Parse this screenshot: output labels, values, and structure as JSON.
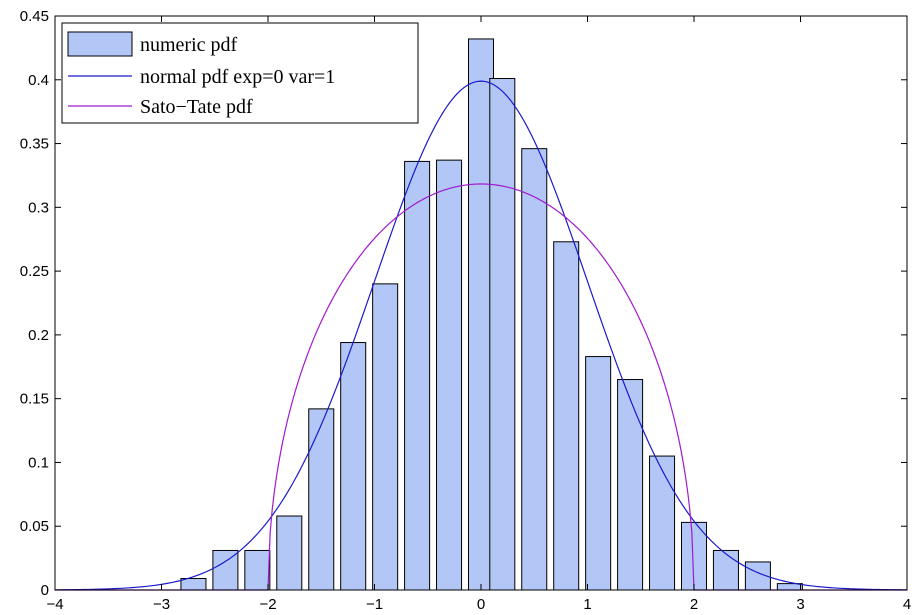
{
  "chart_data": {
    "type": "bar",
    "title": "",
    "xlabel": "",
    "ylabel": "",
    "xlim": [
      -4,
      4
    ],
    "ylim": [
      0,
      0.45
    ],
    "grid": false,
    "legend_position": "top-left",
    "x_ticks": [
      -4,
      -3,
      -2,
      -1,
      0,
      1,
      2,
      3,
      4
    ],
    "x_tick_labels": [
      "−4",
      "−3",
      "−2",
      "−1",
      "0",
      "1",
      "2",
      "3",
      "4"
    ],
    "y_ticks": [
      0,
      0.05,
      0.1,
      0.15,
      0.2,
      0.25,
      0.3,
      0.35,
      0.4,
      0.45
    ],
    "y_tick_labels": [
      "0",
      "0.05",
      "0.1",
      "0.15",
      "0.2",
      "0.25",
      "0.3",
      "0.35",
      "0.4",
      "0.45"
    ],
    "bar_width": 0.235,
    "series": [
      {
        "name": "numeric pdf",
        "kind": "bar",
        "color": "#b3c7f7",
        "x": [
          -2.7,
          -2.4,
          -2.1,
          -1.8,
          -1.5,
          -1.2,
          -0.9,
          -0.6,
          -0.3,
          0.0,
          0.2,
          0.5,
          0.8,
          1.1,
          1.4,
          1.7,
          2.0,
          2.3,
          2.6,
          2.9
        ],
        "values": [
          0.009,
          0.031,
          0.031,
          0.058,
          0.142,
          0.194,
          0.24,
          0.336,
          0.337,
          0.432,
          0.401,
          0.346,
          0.273,
          0.183,
          0.165,
          0.105,
          0.053,
          0.031,
          0.022,
          0.005
        ]
      },
      {
        "name": "normal pdf exp=0 var=1",
        "kind": "line",
        "color": "#1a1acc",
        "mean": 0,
        "variance": 1
      },
      {
        "name": "Sato−Tate pdf",
        "kind": "line",
        "color": "#a01ad0",
        "support": [
          -2,
          2
        ]
      }
    ]
  }
}
